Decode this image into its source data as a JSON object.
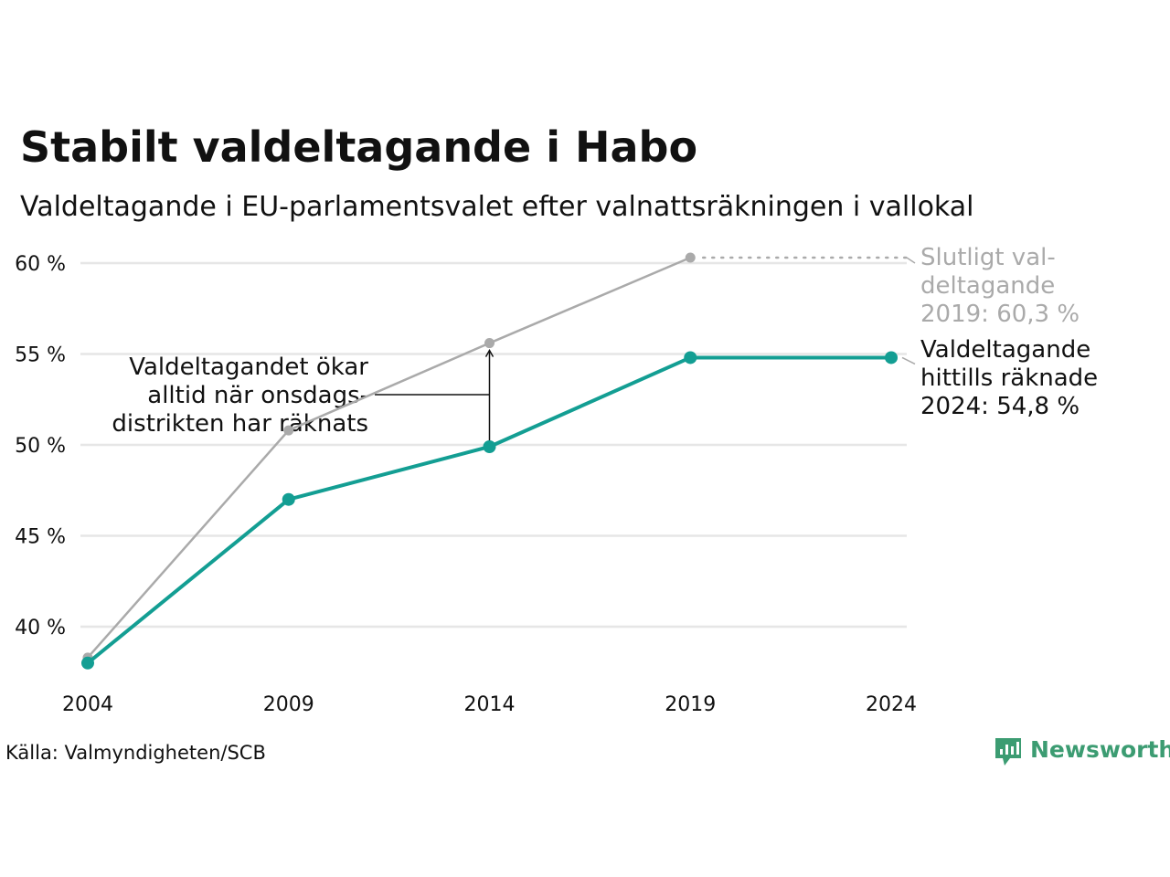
{
  "colors": {
    "accent": "#139e93",
    "comparison": "#aaaaaa",
    "grid": "#e6e6e6",
    "text": "#111111",
    "brand": "#3c9c72"
  },
  "chart_data": {
    "type": "line",
    "title": "Stabilt valdeltagande i Habo",
    "subtitle": "Valdeltagande i EU-parlamentsvalet efter valnattsräkningen i vallokal",
    "x": [
      2004,
      2009,
      2014,
      2019,
      2024
    ],
    "x_tick_labels": [
      "2004",
      "2009",
      "2014",
      "2019",
      "2024"
    ],
    "ylim": [
      37,
      61.5
    ],
    "y_ticks": [
      40,
      45,
      50,
      55,
      60
    ],
    "y_tick_labels": [
      "40 %",
      "45 %",
      "50 %",
      "55 %",
      "60 %"
    ],
    "grid": true,
    "series": [
      {
        "key": "final",
        "color": "#aaaaaa",
        "values": [
          38.3,
          50.8,
          55.6,
          60.3,
          null
        ]
      },
      {
        "key": "counted",
        "color": "#139e93",
        "values": [
          38.0,
          47.0,
          49.9,
          54.8,
          54.8
        ]
      }
    ],
    "annotations": {
      "final_label": [
        "Slutligt val-",
        "deltagande",
        "2019: 60,3 %"
      ],
      "counted_label": [
        "Valdeltagande",
        "hittills räknade",
        "2024: 54,8 %"
      ],
      "note": [
        "Valdeltagandet ökar",
        "alltid när onsdags-",
        "distrikten har räknats"
      ]
    },
    "source": "Källa: Valmyndigheten/SCB"
  },
  "brand": {
    "name": "Newsworthy",
    "logo_icon": "bar-chart-speech-bubble-icon"
  }
}
